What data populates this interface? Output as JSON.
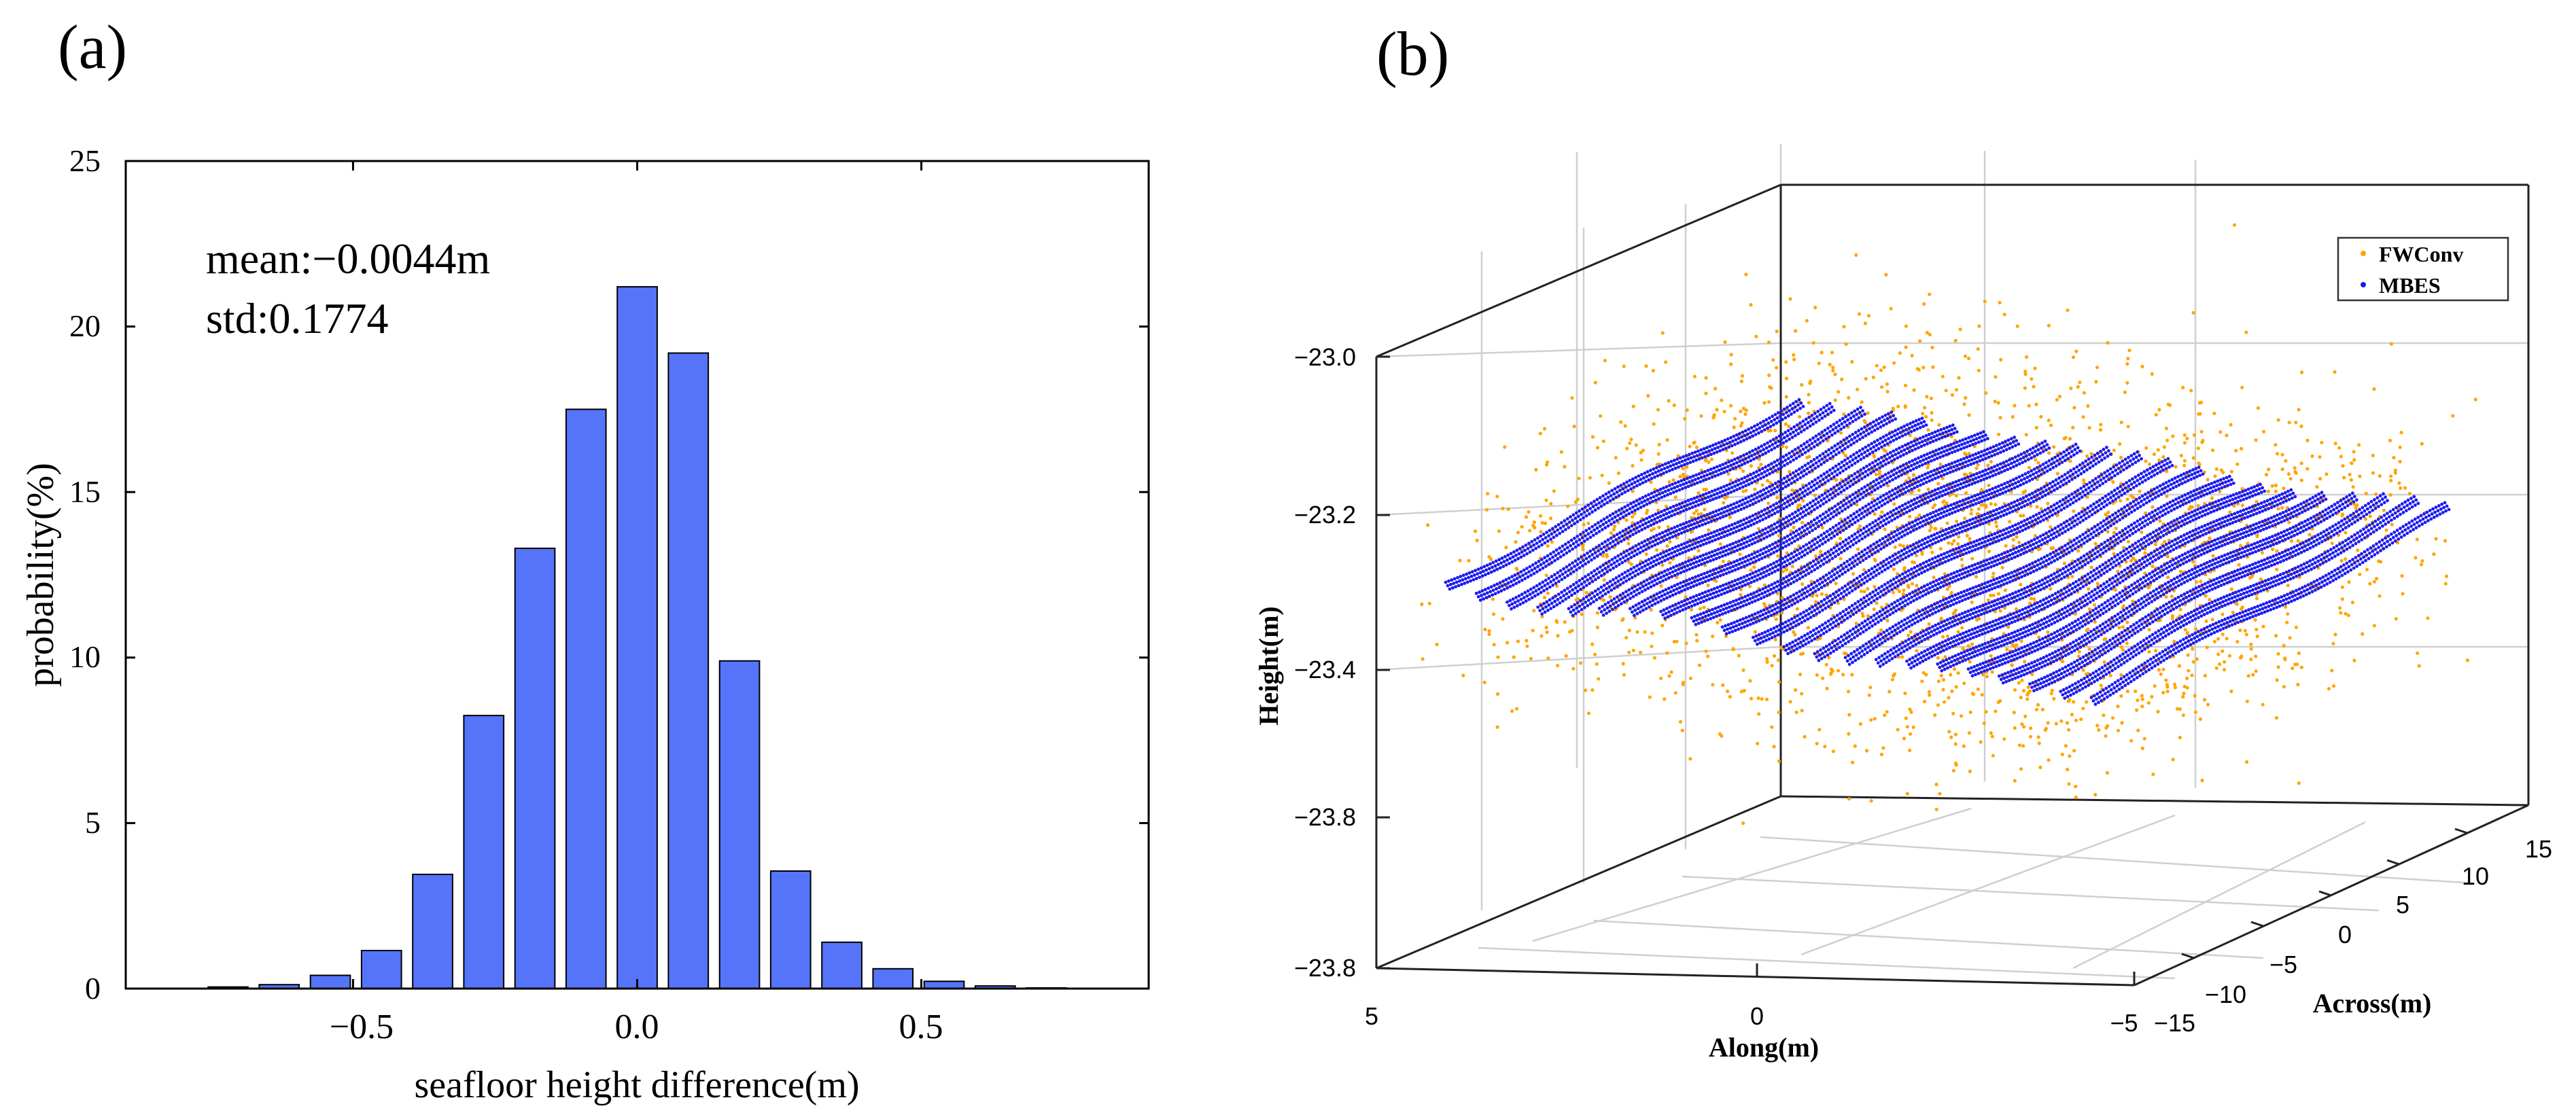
{
  "chart_data": [
    {
      "panel_label": "(a)",
      "type": "bar",
      "title": "",
      "xlabel": "seafloor height difference(m)",
      "ylabel": "probability(%)",
      "xlim": [
        -0.9,
        0.9
      ],
      "ylim": [
        0,
        25
      ],
      "xticks": [
        -0.5,
        0.0,
        0.5
      ],
      "xtick_labels": [
        "−0.5",
        "0.0",
        "0.5"
      ],
      "yticks": [
        0,
        5,
        10,
        15,
        20,
        25
      ],
      "ytick_labels": [
        "0",
        "5",
        "10",
        "15",
        "20",
        "25"
      ],
      "bar_color": "#5574fa",
      "bin_width": 0.09,
      "bin_centers": [
        -0.72,
        -0.63,
        -0.54,
        -0.45,
        -0.36,
        -0.27,
        -0.18,
        -0.09,
        0.0,
        0.09,
        0.18,
        0.27,
        0.36,
        0.45,
        0.54,
        0.63,
        0.72
      ],
      "values": [
        0.05,
        0.12,
        0.4,
        1.15,
        3.45,
        8.25,
        13.3,
        17.5,
        21.2,
        19.2,
        9.9,
        3.55,
        1.4,
        0.6,
        0.22,
        0.08,
        0.02
      ],
      "annotations": [
        "mean:−0.0044m",
        "std:0.1774"
      ],
      "grid": false
    },
    {
      "panel_label": "(b)",
      "type": "scatter",
      "title": "",
      "xlabel": "Along(m)",
      "ylabel": "Across(m)",
      "zlabel": "Height(m)",
      "x_tick_labels": [
        "5",
        "0",
        "−5"
      ],
      "y_tick_labels": [
        "−15",
        "−10",
        "−5",
        "0",
        "5",
        "10",
        "15"
      ],
      "z_tick_labels": [
        "−23.0",
        "−23.2",
        "−23.4",
        "−23.8",
        "−23.8"
      ],
      "series": [
        {
          "name": "FWConv",
          "color": "#ffa500",
          "description": "scattered point cloud around the seafloor surface"
        },
        {
          "name": "MBES",
          "color": "#1a1af0",
          "description": "dense swath lines forming the seafloor surface"
        }
      ],
      "legend_position": "top-right",
      "grid": true
    }
  ]
}
